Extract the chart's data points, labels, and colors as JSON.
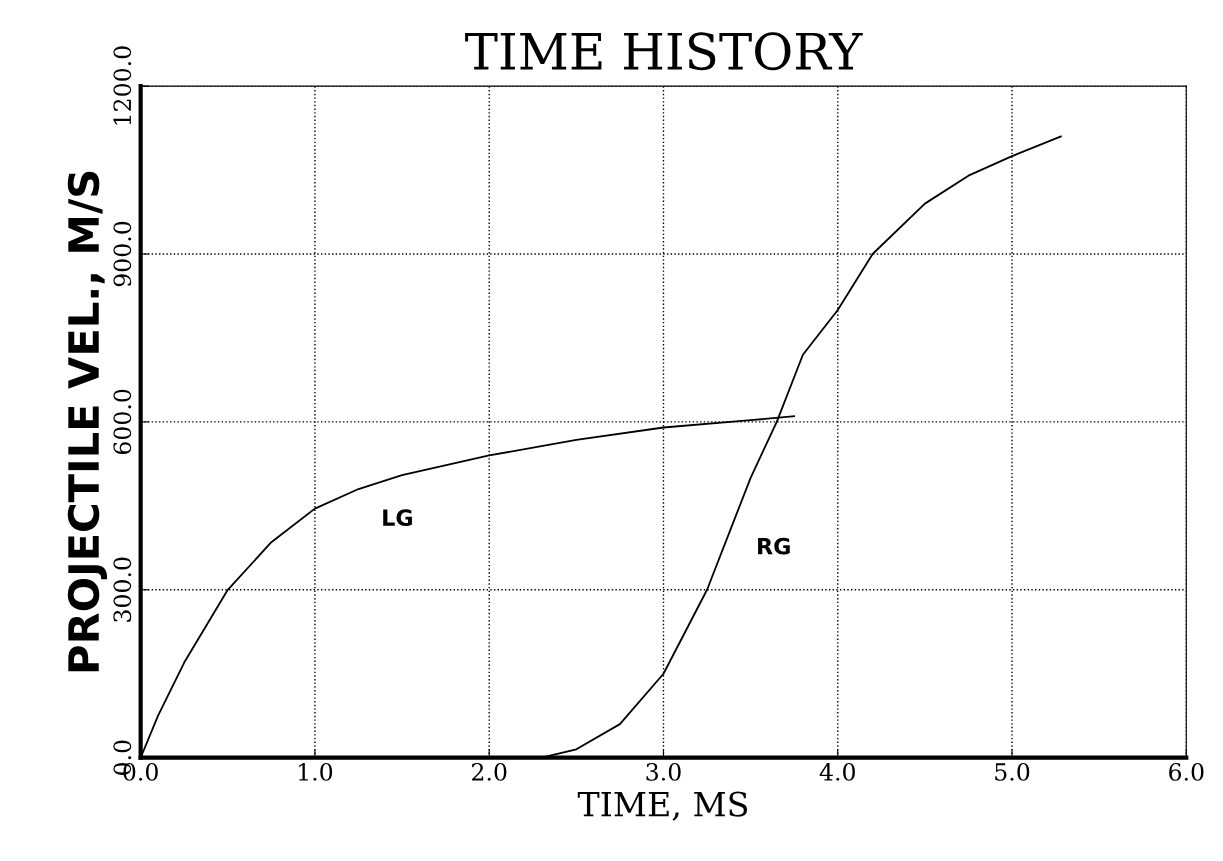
{
  "chart_data": {
    "type": "line",
    "title": "TIME HISTORY",
    "xlabel": "TIME, MS",
    "ylabel": "PROJECTILE VEL., M/S",
    "xlim": [
      0,
      6
    ],
    "ylim": [
      0,
      1200
    ],
    "xticks": [
      {
        "value": 0,
        "label": "0.0"
      },
      {
        "value": 1,
        "label": "1.0"
      },
      {
        "value": 2,
        "label": "2.0"
      },
      {
        "value": 3,
        "label": "3.0"
      },
      {
        "value": 4,
        "label": "4.0"
      },
      {
        "value": 5,
        "label": "5.0"
      },
      {
        "value": 6,
        "label": "6.0"
      }
    ],
    "yticks": [
      {
        "value": 0,
        "label": "0.0"
      },
      {
        "value": 300,
        "label": "300.0"
      },
      {
        "value": 600,
        "label": "600.0"
      },
      {
        "value": 900,
        "label": "900.0"
      },
      {
        "value": 1200,
        "label": "1200.0"
      }
    ],
    "grid": true,
    "line_style": "solid",
    "marker": "none",
    "series": [
      {
        "name": "LG",
        "color": "#000000",
        "x": [
          0,
          0.1,
          0.25,
          0.5,
          0.75,
          1.0,
          1.25,
          1.5,
          2.0,
          2.5,
          3.0,
          3.5,
          3.75
        ],
        "values": [
          0,
          75,
          170,
          300,
          385,
          445,
          480,
          505,
          540,
          568,
          590,
          603,
          610
        ]
      },
      {
        "name": "RG",
        "color": "#000000",
        "x": [
          0,
          2.3,
          2.5,
          2.75,
          3.0,
          3.25,
          3.4,
          3.5,
          3.65,
          3.8,
          4.0,
          4.2,
          4.5,
          4.75,
          5.0,
          5.28
        ],
        "values": [
          0,
          0,
          15,
          60,
          150,
          300,
          420,
          500,
          600,
          720,
          800,
          900,
          990,
          1040,
          1075,
          1110
        ]
      }
    ]
  }
}
